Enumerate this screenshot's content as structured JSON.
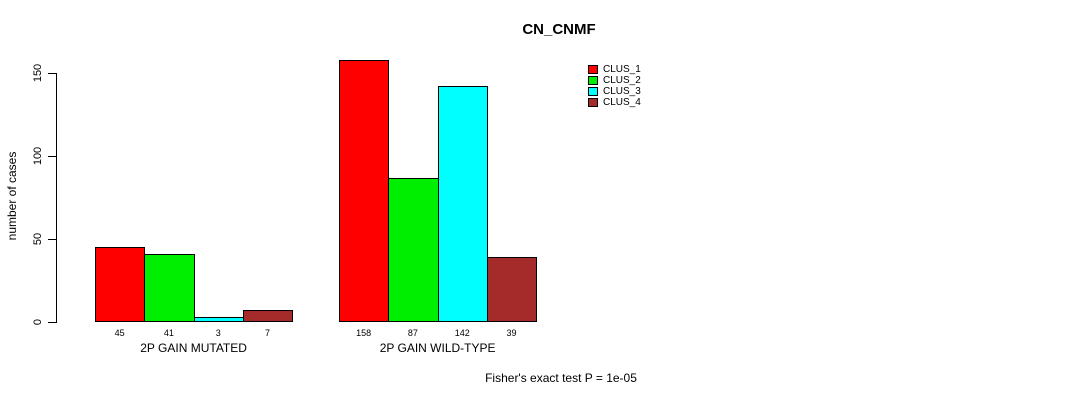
{
  "chart_data": {
    "type": "bar",
    "title": "CN_CNMF",
    "ylabel": "number of cases",
    "xlabel": "",
    "yticks": [
      0,
      50,
      100,
      150
    ],
    "ylim": [
      0,
      158
    ],
    "grid": false,
    "legend_position": "top-right",
    "categories": [
      "2P GAIN MUTATED",
      "2P GAIN WILD-TYPE"
    ],
    "series": [
      {
        "name": "CLUS_1",
        "color": "#ff0000",
        "values": [
          45,
          158
        ]
      },
      {
        "name": "CLUS_2",
        "color": "#00ee00",
        "values": [
          41,
          87
        ]
      },
      {
        "name": "CLUS_3",
        "color": "#00ffff",
        "values": [
          3,
          142
        ]
      },
      {
        "name": "CLUS_4",
        "color": "#a52a2a",
        "values": [
          7,
          39
        ]
      }
    ],
    "bar_labels": [
      [
        45,
        41,
        3,
        7
      ],
      [
        158,
        87,
        142,
        39
      ]
    ],
    "annotation": "Fisher's exact test P = 1e-05"
  }
}
